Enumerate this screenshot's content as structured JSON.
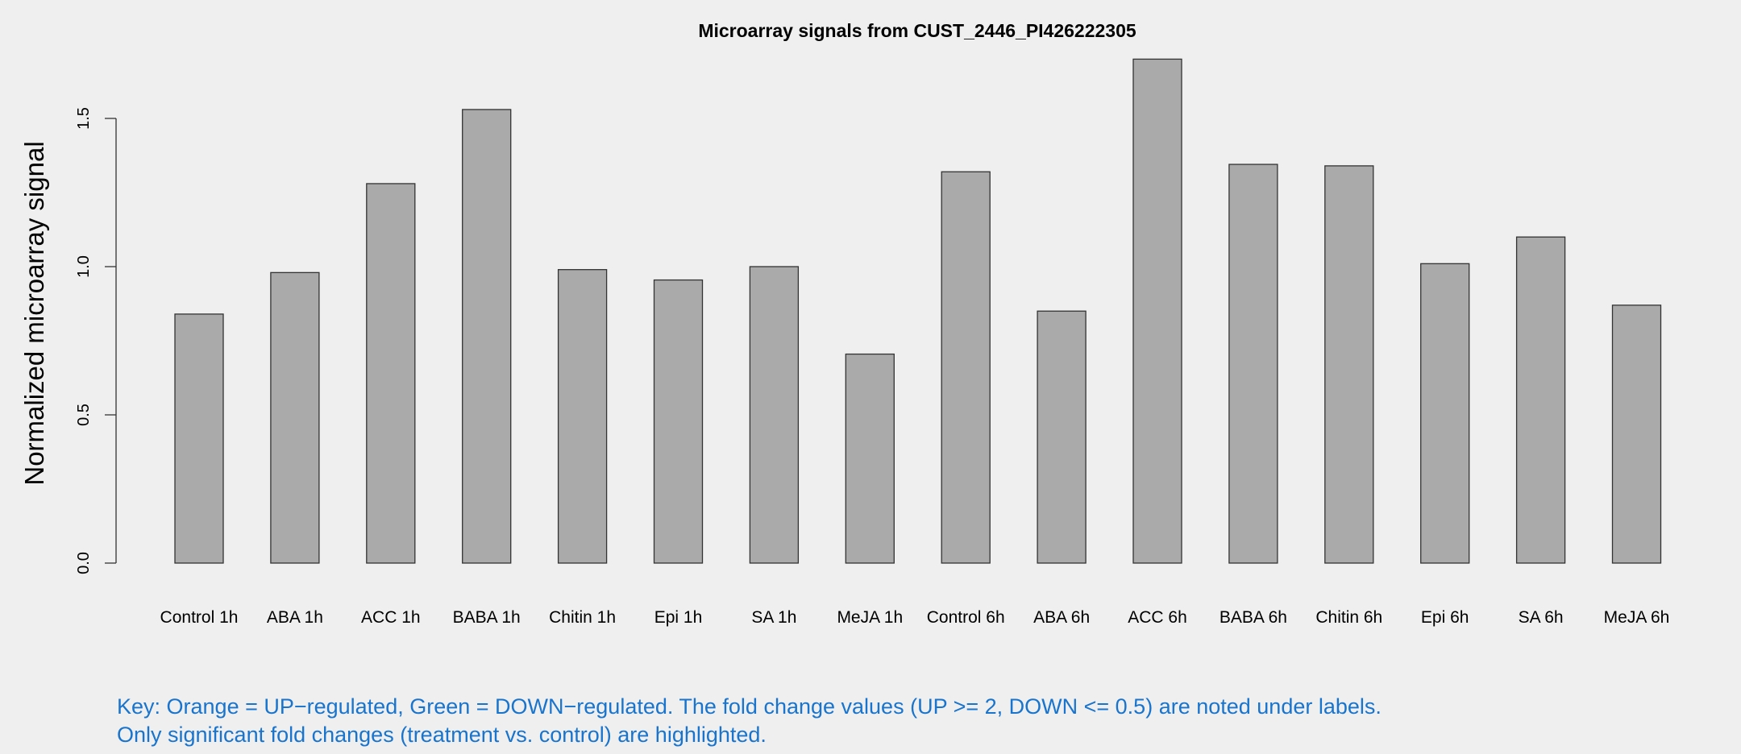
{
  "chart_data": {
    "type": "bar",
    "title": "Microarray signals from CUST_2446_PI426222305",
    "xlabel": "",
    "ylabel": "Normalized microarray signal",
    "ylim": [
      0,
      1.75
    ],
    "yticks": [
      "0.0",
      "0.5",
      "1.0",
      "1.5"
    ],
    "ytick_values": [
      0,
      0.5,
      1.0,
      1.5
    ],
    "grid": false,
    "categories": [
      "Control 1h",
      "ABA 1h",
      "ACC 1h",
      "BABA 1h",
      "Chitin 1h",
      "Epi 1h",
      "SA 1h",
      "MeJA 1h",
      "Control 6h",
      "ABA 6h",
      "ACC 6h",
      "BABA 6h",
      "Chitin 6h",
      "Epi 6h",
      "SA 6h",
      "MeJA 6h"
    ],
    "values": [
      0.84,
      0.98,
      1.28,
      1.53,
      0.99,
      0.955,
      1.0,
      0.705,
      1.32,
      0.85,
      1.7,
      1.345,
      1.34,
      1.01,
      1.1,
      0.87
    ],
    "bar_color": "#aaaaaa",
    "bar_edge_color": "#333333"
  },
  "key": {
    "line1": "Key: Orange = UP−regulated, Green = DOWN−regulated. The fold change values (UP >= 2, DOWN <= 0.5) are noted under labels.",
    "line2": "Only significant fold changes (treatment vs. control) are highlighted.",
    "color": "#1874cd"
  }
}
